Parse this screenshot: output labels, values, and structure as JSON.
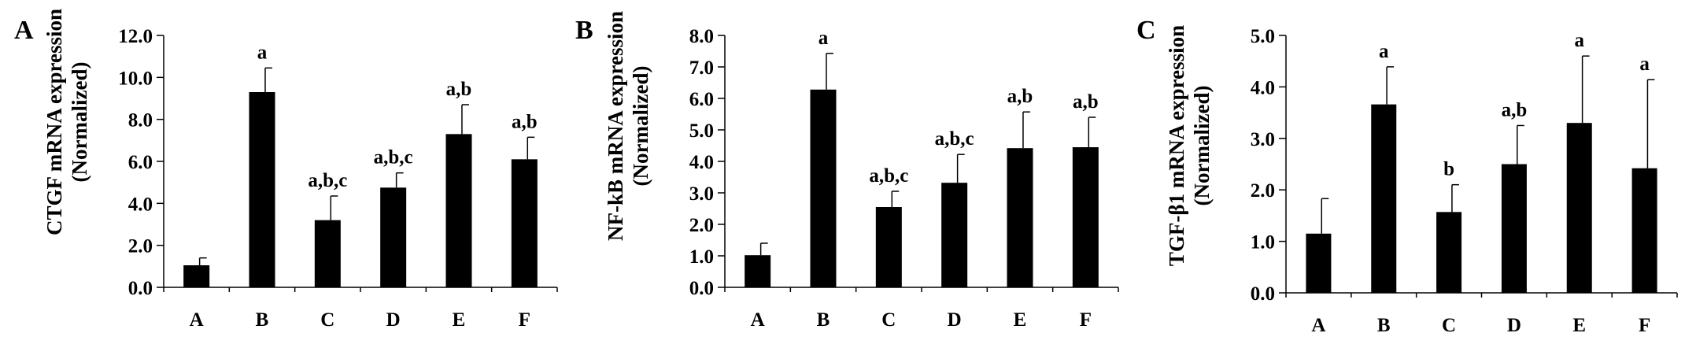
{
  "chart_data": [
    {
      "type": "bar",
      "panel_label": "A",
      "title": "",
      "xlabel": "",
      "ylabel_lines": [
        "CTGF mRNA expression",
        "(Normalized)"
      ],
      "categories": [
        "A",
        "B",
        "C",
        "D",
        "E",
        "F"
      ],
      "values": [
        1.05,
        9.3,
        3.2,
        4.75,
        7.3,
        6.1
      ],
      "errors": [
        0.35,
        1.15,
        1.15,
        0.7,
        1.4,
        1.05
      ],
      "annotations": [
        "",
        "a",
        "a,b,c",
        "a,b,c",
        "a,b",
        "a,b"
      ],
      "ylim": [
        0,
        12
      ],
      "yticks": [
        "0.0",
        "2.0",
        "4.0",
        "6.0",
        "8.0",
        "10.0",
        "12.0"
      ],
      "grid": false,
      "legend": false,
      "bar_color": "#000000"
    },
    {
      "type": "bar",
      "panel_label": "B",
      "title": "",
      "xlabel": "",
      "ylabel_lines": [
        "NF-kB mRNA expression",
        "(Normalized)"
      ],
      "categories": [
        "A",
        "B",
        "C",
        "D",
        "E",
        "F"
      ],
      "values": [
        1.02,
        6.28,
        2.55,
        3.32,
        4.42,
        4.45
      ],
      "errors": [
        0.38,
        1.15,
        0.5,
        0.9,
        1.15,
        0.95
      ],
      "annotations": [
        "",
        "a",
        "a,b,c",
        "a,b,c",
        "a,b",
        "a,b"
      ],
      "ylim": [
        0,
        8
      ],
      "yticks": [
        "0.0",
        "1.0",
        "2.0",
        "3.0",
        "4.0",
        "5.0",
        "6.0",
        "7.0",
        "8.0"
      ],
      "grid": false,
      "legend": false,
      "bar_color": "#000000"
    },
    {
      "type": "bar",
      "panel_label": "C",
      "title": "",
      "xlabel": "",
      "ylabel_lines": [
        "TGF-β1 mRNA expression",
        "(Normalized)"
      ],
      "categories": [
        "A",
        "B",
        "C",
        "D",
        "E",
        "F"
      ],
      "values": [
        1.15,
        3.66,
        1.57,
        2.5,
        3.3,
        2.42
      ],
      "errors": [
        0.68,
        0.73,
        0.53,
        0.75,
        1.3,
        1.72
      ],
      "annotations": [
        "",
        "a",
        "b",
        "a,b",
        "a",
        "a"
      ],
      "ylim": [
        0,
        5
      ],
      "yticks": [
        "0.0",
        "1.0",
        "2.0",
        "3.0",
        "4.0",
        "5.0"
      ],
      "grid": false,
      "legend": false,
      "bar_color": "#000000"
    }
  ]
}
